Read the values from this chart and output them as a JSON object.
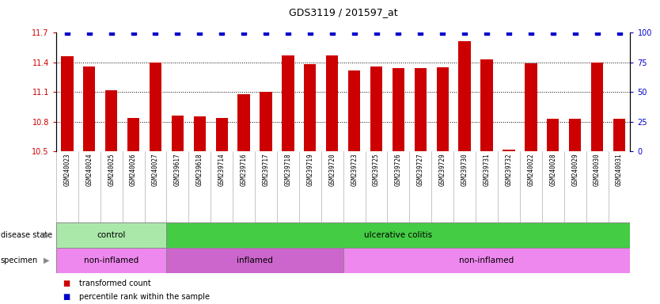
{
  "title": "GDS3119 / 201597_at",
  "samples": [
    "GSM240023",
    "GSM240024",
    "GSM240025",
    "GSM240026",
    "GSM240027",
    "GSM239617",
    "GSM239618",
    "GSM239714",
    "GSM239716",
    "GSM239717",
    "GSM239718",
    "GSM239719",
    "GSM239720",
    "GSM239723",
    "GSM239725",
    "GSM239726",
    "GSM239727",
    "GSM239729",
    "GSM239730",
    "GSM239731",
    "GSM239732",
    "GSM240022",
    "GSM240028",
    "GSM240029",
    "GSM240030",
    "GSM240031"
  ],
  "transformed_count": [
    11.46,
    11.36,
    11.12,
    10.84,
    11.4,
    10.86,
    10.85,
    10.84,
    11.08,
    11.1,
    11.47,
    11.38,
    11.47,
    11.32,
    11.36,
    11.34,
    11.34,
    11.35,
    11.61,
    11.43,
    10.52,
    11.39,
    10.83,
    10.83,
    11.4,
    10.83
  ],
  "percentile_rank": [
    100,
    100,
    100,
    100,
    100,
    100,
    100,
    100,
    100,
    100,
    100,
    100,
    100,
    100,
    100,
    100,
    100,
    100,
    100,
    100,
    100,
    100,
    100,
    100,
    100,
    100
  ],
  "ylim_left": [
    10.5,
    11.7
  ],
  "ylim_right": [
    0,
    100
  ],
  "yticks_left": [
    10.5,
    10.8,
    11.1,
    11.4,
    11.7
  ],
  "yticks_right": [
    0,
    25,
    50,
    75,
    100
  ],
  "bar_color": "#cc0000",
  "dot_color": "#0000cc",
  "disease_state_groups": [
    {
      "label": "control",
      "start": 0,
      "end": 5,
      "color": "#aae8aa"
    },
    {
      "label": "ulcerative colitis",
      "start": 5,
      "end": 26,
      "color": "#44cc44"
    }
  ],
  "specimen_groups": [
    {
      "label": "non-inflamed",
      "start": 0,
      "end": 5,
      "color": "#ee88ee"
    },
    {
      "label": "inflamed",
      "start": 5,
      "end": 13,
      "color": "#cc66cc"
    },
    {
      "label": "non-inflamed",
      "start": 13,
      "end": 26,
      "color": "#ee88ee"
    }
  ],
  "legend_items": [
    {
      "label": "transformed count",
      "color": "#cc0000"
    },
    {
      "label": "percentile rank within the sample",
      "color": "#0000cc"
    }
  ],
  "bar_width": 0.55,
  "xtick_bg_color": "#cccccc",
  "grid_color": "#000000",
  "left_label_color": "#555555"
}
